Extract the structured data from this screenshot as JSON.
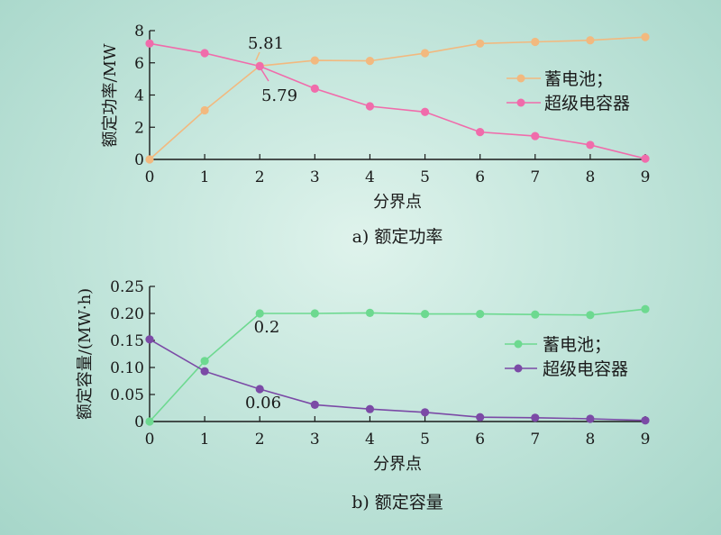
{
  "chart_data": [
    {
      "type": "line",
      "caption": "a) 额定功率",
      "xlabel": "分界点",
      "ylabel": "额定功率/MW",
      "x": [
        0,
        1,
        2,
        3,
        4,
        5,
        6,
        7,
        8,
        9
      ],
      "xlim": [
        0,
        9
      ],
      "ylim": [
        0,
        8
      ],
      "xticks": [
        "0",
        "1",
        "2",
        "3",
        "4",
        "5",
        "6",
        "7",
        "8",
        "9"
      ],
      "yticks": [
        "0",
        "2",
        "4",
        "6",
        "8"
      ],
      "grid": false,
      "legend_position": "right",
      "series": [
        {
          "name": "蓄电池；",
          "color": "#f2b97f",
          "values": [
            0,
            3.05,
            5.81,
            6.15,
            6.12,
            6.6,
            7.2,
            7.3,
            7.4,
            7.6
          ]
        },
        {
          "name": "超级电容器",
          "color": "#f06cab",
          "values": [
            7.2,
            6.6,
            5.79,
            4.4,
            3.3,
            2.95,
            1.7,
            1.45,
            0.9,
            0.05
          ]
        }
      ],
      "annotations": [
        "5.81",
        "5.79"
      ]
    },
    {
      "type": "line",
      "caption": "b) 额定容量",
      "xlabel": "分界点",
      "ylabel": "额定容量/(MW·h)",
      "x": [
        0,
        1,
        2,
        3,
        4,
        5,
        6,
        7,
        8,
        9
      ],
      "xlim": [
        0,
        9
      ],
      "ylim": [
        0,
        0.25
      ],
      "xticks": [
        "0",
        "1",
        "2",
        "3",
        "4",
        "5",
        "6",
        "7",
        "8",
        "9"
      ],
      "yticks": [
        "0",
        "0.05",
        "0.10",
        "0.15",
        "0.20",
        "0.25"
      ],
      "grid": false,
      "legend_position": "right",
      "series": [
        {
          "name": "蓄电池；",
          "color": "#6dd990",
          "values": [
            0,
            0.112,
            0.2,
            0.2,
            0.201,
            0.199,
            0.199,
            0.198,
            0.197,
            0.208
          ]
        },
        {
          "name": "超级电容器",
          "color": "#7b4aa6",
          "values": [
            0.152,
            0.093,
            0.06,
            0.031,
            0.023,
            0.017,
            0.008,
            0.007,
            0.005,
            0.002
          ]
        }
      ],
      "annotations": [
        "0.2",
        "0.06"
      ]
    }
  ]
}
